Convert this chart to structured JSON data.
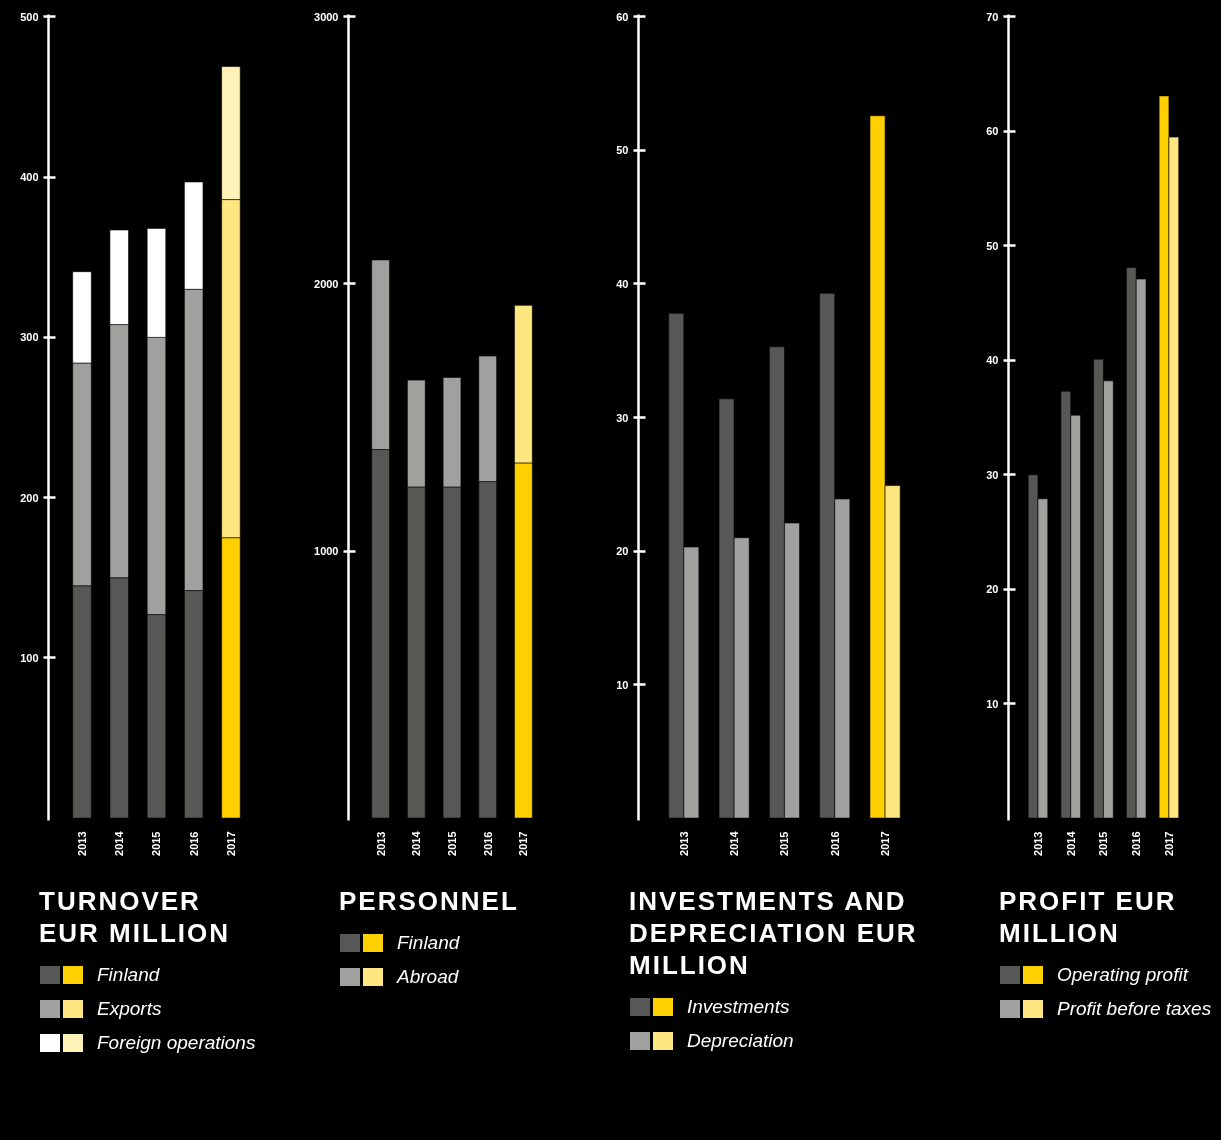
{
  "chart_data": [
    {
      "type": "bar",
      "stacked": true,
      "title": "TURNOVER EUR MILLION",
      "categories": [
        "2013",
        "2014",
        "2015",
        "2016",
        "2017"
      ],
      "ylim": [
        0,
        500
      ],
      "yticks": [
        100,
        200,
        300,
        400,
        500
      ],
      "legend": "bottom",
      "series": [
        {
          "name": "Finland",
          "colors": [
            "#575755",
            "#575755",
            "#575755",
            "#575755",
            "#ffd000"
          ],
          "values": [
            145,
            150,
            127,
            142,
            175
          ]
        },
        {
          "name": "Exports",
          "colors": [
            "#a0a09f",
            "#a0a09f",
            "#a0a09f",
            "#a0a09f",
            "#ffe680"
          ],
          "values": [
            139,
            158,
            173,
            188,
            211
          ]
        },
        {
          "name": "Foreign operations",
          "colors": [
            "#ffffff",
            "#ffffff",
            "#ffffff",
            "#ffffff",
            "#fff2b8"
          ],
          "values": [
            57,
            59,
            68,
            67,
            83
          ]
        }
      ]
    },
    {
      "type": "bar",
      "stacked": true,
      "title": "PERSONNEL",
      "categories": [
        "2013",
        "2014",
        "2015",
        "2016",
        "2017"
      ],
      "ylim": [
        0,
        3000
      ],
      "yticks": [
        1000,
        2000,
        3000
      ],
      "legend": "bottom",
      "series": [
        {
          "name": "Finland",
          "colors": [
            "#575755",
            "#575755",
            "#575755",
            "#575755",
            "#ffd000"
          ],
          "values": [
            1380,
            1240,
            1240,
            1260,
            1330
          ]
        },
        {
          "name": "Abroad",
          "colors": [
            "#a0a09f",
            "#a0a09f",
            "#a0a09f",
            "#a0a09f",
            "#ffe680"
          ],
          "values": [
            710,
            400,
            410,
            470,
            590
          ]
        }
      ]
    },
    {
      "type": "bar",
      "title": "INVESTMENTS AND DEPRECIATION EUR MILLION",
      "categories": [
        "2013",
        "2014",
        "2015",
        "2016",
        "2017"
      ],
      "ylim": [
        0,
        60
      ],
      "yticks": [
        10,
        20,
        30,
        40,
        50,
        60
      ],
      "legend": "bottom",
      "series": [
        {
          "name": "Investments",
          "colors": [
            "#575755",
            "#575755",
            "#575755",
            "#575755",
            "#ffd000"
          ],
          "values": [
            37.8,
            31.4,
            35.3,
            39.3,
            52.6
          ]
        },
        {
          "name": "Depreciation",
          "colors": [
            "#a0a09f",
            "#a0a09f",
            "#a0a09f",
            "#a0a09f",
            "#ffe680"
          ],
          "values": [
            20.3,
            21.0,
            22.1,
            23.9,
            24.9
          ]
        }
      ]
    },
    {
      "type": "bar",
      "title": "PROFIT EUR MILLION",
      "categories": [
        "2013",
        "2014",
        "2015",
        "2016",
        "2017"
      ],
      "ylim": [
        0,
        70
      ],
      "yticks": [
        10,
        20,
        30,
        40,
        50,
        60,
        70
      ],
      "legend": "bottom",
      "series": [
        {
          "name": "Operating profit",
          "colors": [
            "#575755",
            "#575755",
            "#575755",
            "#575755",
            "#ffd000"
          ],
          "values": [
            30.0,
            37.3,
            40.1,
            48.1,
            63.1
          ]
        },
        {
          "name": "Profit before taxes",
          "colors": [
            "#a0a09f",
            "#a0a09f",
            "#a0a09f",
            "#a0a09f",
            "#ffe680"
          ],
          "values": [
            27.9,
            35.2,
            38.2,
            47.1,
            59.5
          ]
        }
      ]
    }
  ]
}
